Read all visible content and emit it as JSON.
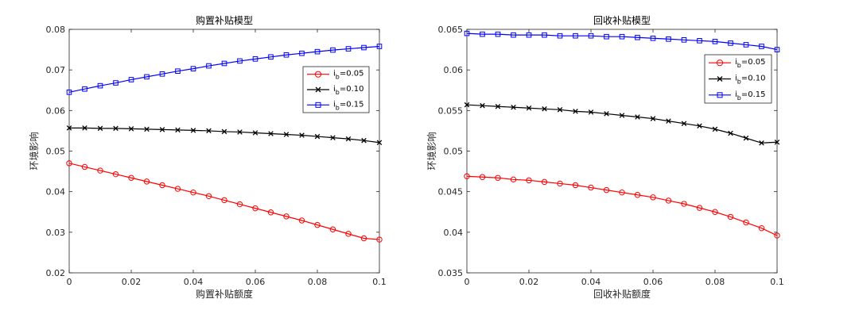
{
  "figure_caption": "",
  "chart_data": [
    {
      "type": "line",
      "title": "购置补贴模型",
      "xlabel": "购置补贴额度",
      "ylabel": "环境影响",
      "xlim": [
        0,
        0.1
      ],
      "ylim": [
        0.02,
        0.08
      ],
      "xticks": [
        "0",
        "0.02",
        "0.04",
        "0.06",
        "0.08",
        "0.1"
      ],
      "yticks": [
        "0.02",
        "0.03",
        "0.04",
        "0.05",
        "0.06",
        "0.07",
        "0.08"
      ],
      "legend_position": "middle-right",
      "x": [
        0,
        0.005,
        0.01,
        0.015,
        0.02,
        0.025,
        0.03,
        0.035,
        0.04,
        0.045,
        0.05,
        0.055,
        0.06,
        0.065,
        0.07,
        0.075,
        0.08,
        0.085,
        0.09,
        0.095,
        0.1
      ],
      "series": [
        {
          "name": "i",
          "sub": "b",
          "value": "=0.05",
          "color": "#ff0000",
          "marker": "circle",
          "values": [
            0.047,
            0.0461,
            0.0452,
            0.0443,
            0.0434,
            0.0425,
            0.0416,
            0.0407,
            0.0398,
            0.0389,
            0.0379,
            0.0369,
            0.0359,
            0.0349,
            0.0339,
            0.0329,
            0.0318,
            0.0307,
            0.0296,
            0.0285,
            0.0282
          ]
        },
        {
          "name": "i",
          "sub": "b",
          "value": "=0.10",
          "color": "#000000",
          "marker": "x",
          "values": [
            0.0557,
            0.0557,
            0.0556,
            0.0556,
            0.0555,
            0.0554,
            0.0553,
            0.0552,
            0.0551,
            0.055,
            0.0548,
            0.0547,
            0.0545,
            0.0543,
            0.0541,
            0.0539,
            0.0536,
            0.0533,
            0.053,
            0.0526,
            0.0521
          ]
        },
        {
          "name": "i",
          "sub": "b",
          "value": "=0.15",
          "color": "#0000ff",
          "marker": "square",
          "values": [
            0.0645,
            0.0653,
            0.0661,
            0.0668,
            0.0676,
            0.0683,
            0.069,
            0.0697,
            0.0703,
            0.071,
            0.0716,
            0.0722,
            0.0727,
            0.0732,
            0.0737,
            0.0741,
            0.0745,
            0.0749,
            0.0752,
            0.0755,
            0.0758
          ]
        }
      ]
    },
    {
      "type": "line",
      "title": "回收补贴模型",
      "xlabel": "回收补贴额度",
      "ylabel": "环境影响",
      "xlim": [
        0,
        0.1
      ],
      "ylim": [
        0.035,
        0.065
      ],
      "xticks": [
        "0",
        "0.02",
        "0.04",
        "0.06",
        "0.08",
        "0.1"
      ],
      "yticks": [
        "0.035",
        "0.04",
        "0.045",
        "0.05",
        "0.055",
        "0.06",
        "0.065"
      ],
      "legend_position": "top-right",
      "x": [
        0,
        0.005,
        0.01,
        0.015,
        0.02,
        0.025,
        0.03,
        0.035,
        0.04,
        0.045,
        0.05,
        0.055,
        0.06,
        0.065,
        0.07,
        0.075,
        0.08,
        0.085,
        0.09,
        0.095,
        0.1
      ],
      "series": [
        {
          "name": "i",
          "sub": "b",
          "value": "=0.05",
          "color": "#ff0000",
          "marker": "circle",
          "values": [
            0.0469,
            0.0468,
            0.0467,
            0.0465,
            0.0464,
            0.0462,
            0.046,
            0.0458,
            0.0455,
            0.0452,
            0.0449,
            0.0446,
            0.0443,
            0.0439,
            0.0435,
            0.043,
            0.0425,
            0.0419,
            0.0412,
            0.0405,
            0.0396
          ]
        },
        {
          "name": "i",
          "sub": "b",
          "value": "=0.10",
          "color": "#000000",
          "marker": "x",
          "values": [
            0.0557,
            0.0556,
            0.0555,
            0.0554,
            0.0553,
            0.0552,
            0.0551,
            0.0549,
            0.0548,
            0.0546,
            0.0544,
            0.0542,
            0.054,
            0.0537,
            0.0534,
            0.0531,
            0.0527,
            0.0522,
            0.0516,
            0.051,
            0.0511
          ]
        },
        {
          "name": "i",
          "sub": "b",
          "value": "=0.15",
          "color": "#0000ff",
          "marker": "square",
          "values": [
            0.0645,
            0.0644,
            0.0644,
            0.0643,
            0.0643,
            0.0643,
            0.0642,
            0.0642,
            0.0642,
            0.0641,
            0.0641,
            0.064,
            0.0639,
            0.0638,
            0.0637,
            0.0636,
            0.0635,
            0.0633,
            0.0631,
            0.0629,
            0.0625
          ]
        }
      ]
    }
  ]
}
